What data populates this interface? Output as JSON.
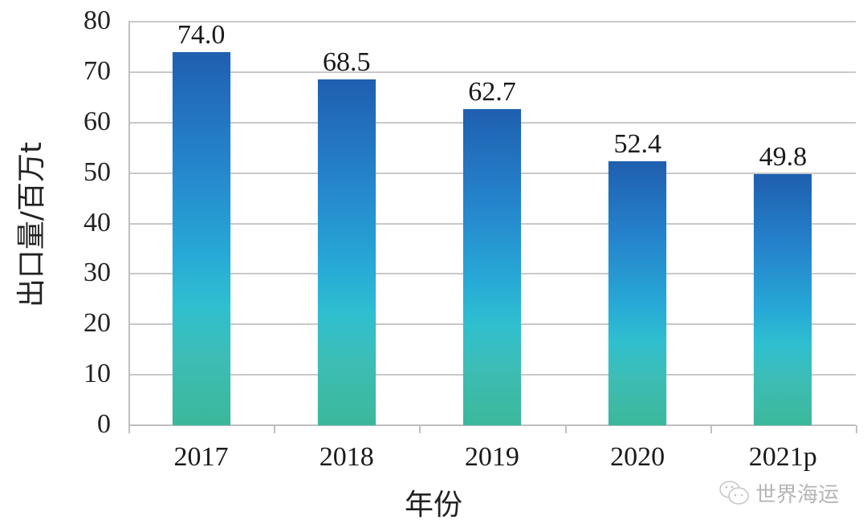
{
  "chart_data": {
    "type": "bar",
    "title": "",
    "xlabel": "年份",
    "ylabel": "出口量/百万t",
    "categories": [
      "2017",
      "2018",
      "2019",
      "2020",
      "2021p"
    ],
    "values": [
      74.0,
      68.5,
      62.7,
      52.4,
      49.8
    ],
    "value_labels": [
      "74.0",
      "68.5",
      "62.7",
      "52.4",
      "49.8"
    ],
    "ylim": [
      0,
      80
    ],
    "yticks": [
      "0",
      "10",
      "20",
      "30",
      "40",
      "50",
      "60",
      "70",
      "80"
    ],
    "grid": true,
    "legend": null,
    "bar_gradient": [
      "#1f5fb0",
      "#2585cc",
      "#27aad6",
      "#3dbdb5",
      "#3bb89a"
    ]
  },
  "watermark": {
    "icon": "wechat-icon",
    "text": "世界海运"
  }
}
